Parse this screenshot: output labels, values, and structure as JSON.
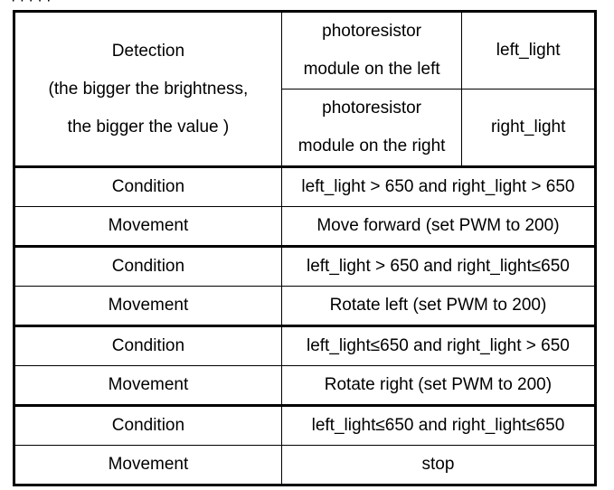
{
  "top_fragment": "· · · · ·",
  "header": {
    "detection_lines": [
      "Detection",
      "(the bigger the brightness,",
      "the bigger the value )"
    ],
    "sensors": [
      {
        "description_lines": [
          "photoresistor",
          "module on the left"
        ],
        "variable": "left_light"
      },
      {
        "description_lines": [
          "photoresistor",
          "module on the right"
        ],
        "variable": "right_light"
      }
    ]
  },
  "rules": [
    {
      "condition_label": "Condition",
      "condition": "left_light > 650 and right_light > 650",
      "movement_label": "Movement",
      "movement": "Move forward  (set PWM to 200)"
    },
    {
      "condition_label": "Condition",
      "condition": "left_light > 650 and right_light≤650",
      "movement_label": "Movement",
      "movement": "Rotate left  (set PWM to 200)"
    },
    {
      "condition_label": "Condition",
      "condition": "left_light≤650 and right_light > 650",
      "movement_label": "Movement",
      "movement": "Rotate right  (set PWM to 200)"
    },
    {
      "condition_label": "Condition",
      "condition": "left_light≤650 and right_light≤650",
      "movement_label": "Movement",
      "movement": "stop"
    }
  ]
}
